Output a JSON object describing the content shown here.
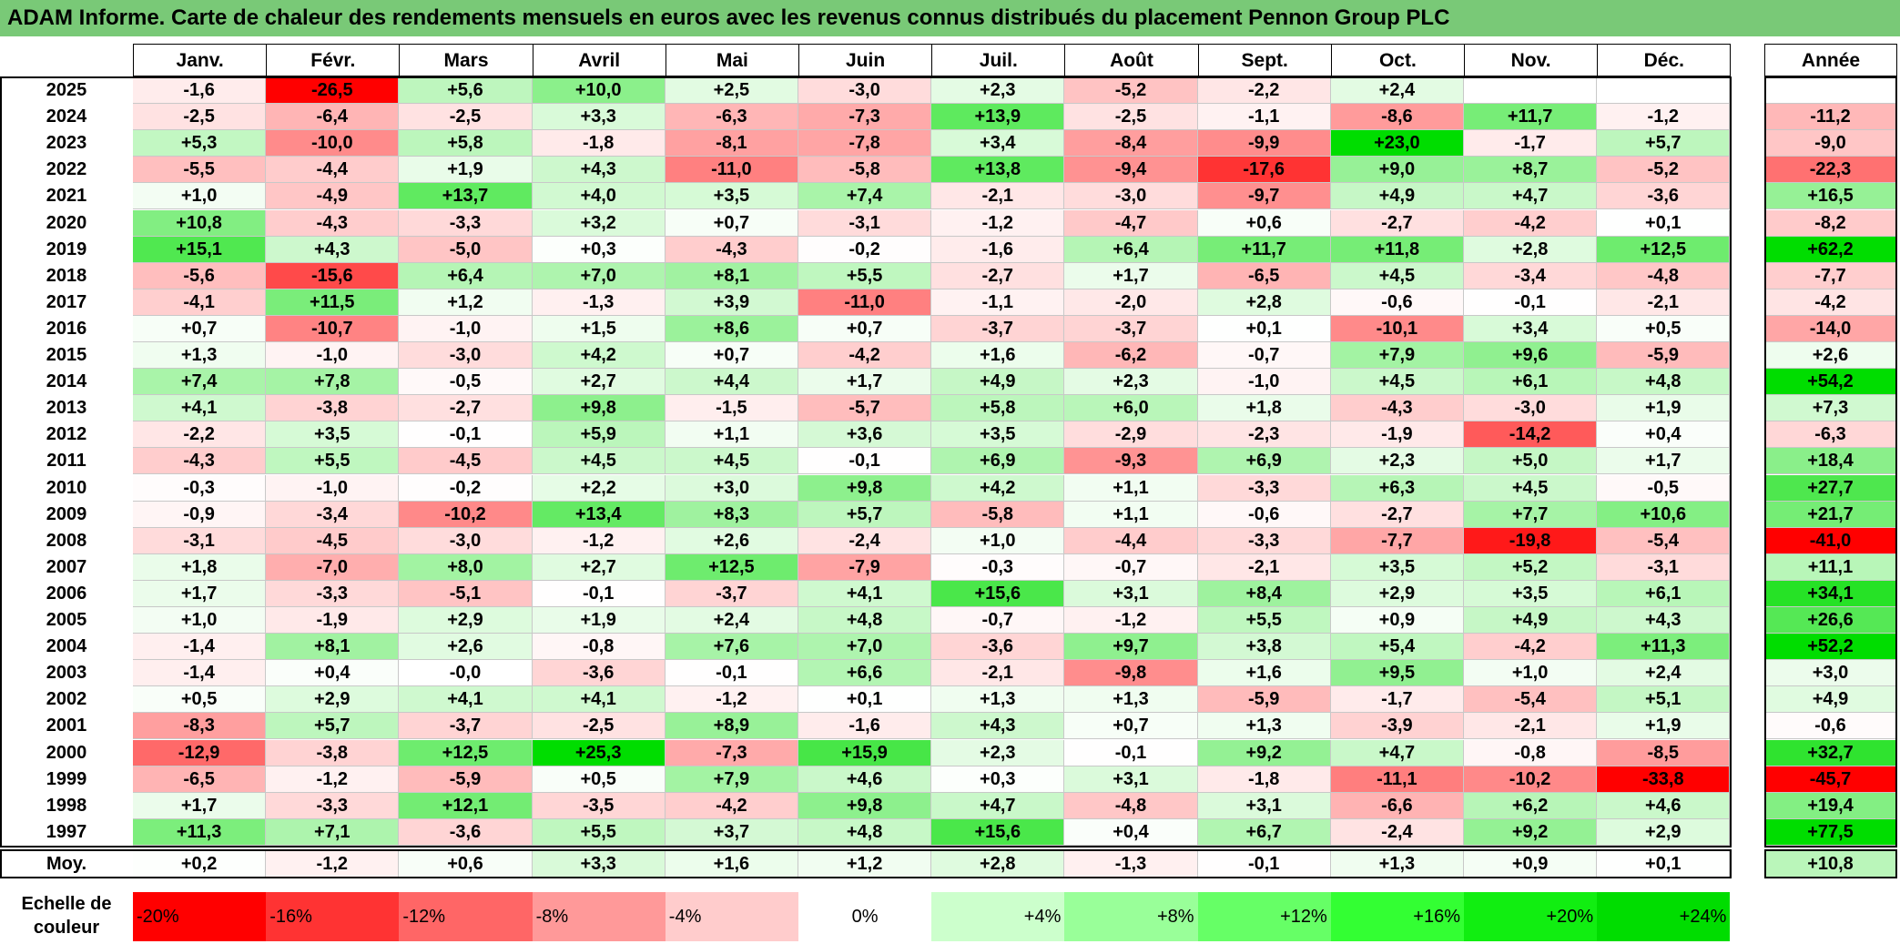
{
  "title": "ADAM Informe. Carte de chaleur des rendements mensuels en euros avec les revenus connus distribués du placement Pennon Group PLC",
  "chart_data": {
    "type": "heatmap",
    "columns": [
      "Janv.",
      "Févr.",
      "Mars",
      "Avril",
      "Mai",
      "Juin",
      "Juil.",
      "Août",
      "Sept.",
      "Oct.",
      "Nov.",
      "Déc."
    ],
    "year_column_label": "Année",
    "rows": [
      {
        "label": "2025",
        "values": [
          "-1,6",
          "-26,5",
          "+5,6",
          "+10,0",
          "+2,5",
          "-3,0",
          "+2,3",
          "-5,2",
          "-2,2",
          "+2,4",
          "",
          ""
        ],
        "annual": ""
      },
      {
        "label": "2024",
        "values": [
          "-2,5",
          "-6,4",
          "-2,5",
          "+3,3",
          "-6,3",
          "-7,3",
          "+13,9",
          "-2,5",
          "-1,1",
          "-8,6",
          "+11,7",
          "-1,2"
        ],
        "annual": "-11,2"
      },
      {
        "label": "2023",
        "values": [
          "+5,3",
          "-10,0",
          "+5,8",
          "-1,8",
          "-8,1",
          "-7,8",
          "+3,4",
          "-8,4",
          "-9,9",
          "+23,0",
          "-1,7",
          "+5,7"
        ],
        "annual": "-9,0"
      },
      {
        "label": "2022",
        "values": [
          "-5,5",
          "-4,4",
          "+1,9",
          "+4,3",
          "-11,0",
          "-5,8",
          "+13,8",
          "-9,4",
          "-17,6",
          "+9,0",
          "+8,7",
          "-5,2"
        ],
        "annual": "-22,3"
      },
      {
        "label": "2021",
        "values": [
          "+1,0",
          "-4,9",
          "+13,7",
          "+4,0",
          "+3,5",
          "+7,4",
          "-2,1",
          "-3,0",
          "-9,7",
          "+4,9",
          "+4,7",
          "-3,6"
        ],
        "annual": "+16,5"
      },
      {
        "label": "2020",
        "values": [
          "+10,8",
          "-4,3",
          "-3,3",
          "+3,2",
          "+0,7",
          "-3,1",
          "-1,2",
          "-4,7",
          "+0,6",
          "-2,7",
          "-4,2",
          "+0,1"
        ],
        "annual": "-8,2"
      },
      {
        "label": "2019",
        "values": [
          "+15,1",
          "+4,3",
          "-5,0",
          "+0,3",
          "-4,3",
          "-0,2",
          "-1,6",
          "+6,4",
          "+11,7",
          "+11,8",
          "+2,8",
          "+12,5"
        ],
        "annual": "+62,2"
      },
      {
        "label": "2018",
        "values": [
          "-5,6",
          "-15,6",
          "+6,4",
          "+7,0",
          "+8,1",
          "+5,5",
          "-2,7",
          "+1,7",
          "-6,5",
          "+4,5",
          "-3,4",
          "-4,8"
        ],
        "annual": "-7,7"
      },
      {
        "label": "2017",
        "values": [
          "-4,1",
          "+11,5",
          "+1,2",
          "-1,3",
          "+3,9",
          "-11,0",
          "-1,1",
          "-2,0",
          "+2,8",
          "-0,6",
          "-0,1",
          "-2,1"
        ],
        "annual": "-4,2"
      },
      {
        "label": "2016",
        "values": [
          "+0,7",
          "-10,7",
          "-1,0",
          "+1,5",
          "+8,6",
          "+0,7",
          "-3,7",
          "-3,7",
          "+0,1",
          "-10,1",
          "+3,4",
          "+0,5"
        ],
        "annual": "-14,0"
      },
      {
        "label": "2015",
        "values": [
          "+1,3",
          "-1,0",
          "-3,0",
          "+4,2",
          "+0,7",
          "-4,2",
          "+1,6",
          "-6,2",
          "-0,7",
          "+7,9",
          "+9,6",
          "-5,9"
        ],
        "annual": "+2,6"
      },
      {
        "label": "2014",
        "values": [
          "+7,4",
          "+7,8",
          "-0,5",
          "+2,7",
          "+4,4",
          "+1,7",
          "+4,9",
          "+2,3",
          "-1,0",
          "+4,5",
          "+6,1",
          "+4,8"
        ],
        "annual": "+54,2"
      },
      {
        "label": "2013",
        "values": [
          "+4,1",
          "-3,8",
          "-2,7",
          "+9,8",
          "-1,5",
          "-5,7",
          "+5,8",
          "+6,0",
          "+1,8",
          "-4,3",
          "-3,0",
          "+1,9"
        ],
        "annual": "+7,3"
      },
      {
        "label": "2012",
        "values": [
          "-2,2",
          "+3,5",
          "-0,1",
          "+5,9",
          "+1,1",
          "+3,6",
          "+3,5",
          "-2,9",
          "-2,3",
          "-1,9",
          "-14,2",
          "+0,4"
        ],
        "annual": "-6,3"
      },
      {
        "label": "2011",
        "values": [
          "-4,3",
          "+5,5",
          "-4,5",
          "+4,5",
          "+4,5",
          "-0,1",
          "+6,9",
          "-9,3",
          "+6,9",
          "+2,3",
          "+5,0",
          "+1,7"
        ],
        "annual": "+18,4"
      },
      {
        "label": "2010",
        "values": [
          "-0,3",
          "-1,0",
          "-0,2",
          "+2,2",
          "+3,0",
          "+9,8",
          "+4,2",
          "+1,1",
          "-3,3",
          "+6,3",
          "+4,5",
          "-0,5"
        ],
        "annual": "+27,7"
      },
      {
        "label": "2009",
        "values": [
          "-0,9",
          "-3,4",
          "-10,2",
          "+13,4",
          "+8,3",
          "+5,7",
          "-5,8",
          "+1,1",
          "-0,6",
          "-2,7",
          "+7,7",
          "+10,6"
        ],
        "annual": "+21,7"
      },
      {
        "label": "2008",
        "values": [
          "-3,1",
          "-4,5",
          "-3,0",
          "-1,2",
          "+2,6",
          "-2,4",
          "+1,0",
          "-4,4",
          "-3,3",
          "-7,7",
          "-19,8",
          "-5,4"
        ],
        "annual": "-41,0"
      },
      {
        "label": "2007",
        "values": [
          "+1,8",
          "-7,0",
          "+8,0",
          "+2,7",
          "+12,5",
          "-7,9",
          "-0,3",
          "-0,7",
          "-2,1",
          "+3,5",
          "+5,2",
          "-3,1"
        ],
        "annual": "+11,1"
      },
      {
        "label": "2006",
        "values": [
          "+1,7",
          "-3,3",
          "-5,1",
          "-0,1",
          "-3,7",
          "+4,1",
          "+15,6",
          "+3,1",
          "+8,4",
          "+2,9",
          "+3,5",
          "+6,1"
        ],
        "annual": "+34,1"
      },
      {
        "label": "2005",
        "values": [
          "+1,0",
          "-1,9",
          "+2,9",
          "+1,9",
          "+2,4",
          "+4,8",
          "-0,7",
          "-1,2",
          "+5,5",
          "+0,9",
          "+4,9",
          "+4,3"
        ],
        "annual": "+26,6"
      },
      {
        "label": "2004",
        "values": [
          "-1,4",
          "+8,1",
          "+2,6",
          "-0,8",
          "+7,6",
          "+7,0",
          "-3,6",
          "+9,7",
          "+3,8",
          "+5,4",
          "-4,2",
          "+11,3"
        ],
        "annual": "+52,2"
      },
      {
        "label": "2003",
        "values": [
          "-1,4",
          "+0,4",
          "-0,0",
          "-3,6",
          "-0,1",
          "+6,6",
          "-2,1",
          "-9,8",
          "+1,6",
          "+9,5",
          "+1,0",
          "+2,4"
        ],
        "annual": "+3,0"
      },
      {
        "label": "2002",
        "values": [
          "+0,5",
          "+2,9",
          "+4,1",
          "+4,1",
          "-1,2",
          "+0,1",
          "+1,3",
          "+1,3",
          "-5,9",
          "-1,7",
          "-5,4",
          "+5,1"
        ],
        "annual": "+4,9"
      },
      {
        "label": "2001",
        "values": [
          "-8,3",
          "+5,7",
          "-3,7",
          "-2,5",
          "+8,9",
          "-1,6",
          "+4,3",
          "+0,7",
          "+1,3",
          "-3,9",
          "-2,1",
          "+1,9"
        ],
        "annual": "-0,6"
      },
      {
        "label": "2000",
        "values": [
          "-12,9",
          "-3,8",
          "+12,5",
          "+25,3",
          "-7,3",
          "+15,9",
          "+2,3",
          "-0,1",
          "+9,2",
          "+4,7",
          "-0,8",
          "-8,5"
        ],
        "annual": "+32,7"
      },
      {
        "label": "1999",
        "values": [
          "-6,5",
          "-1,2",
          "-5,9",
          "+0,5",
          "+7,9",
          "+4,6",
          "+0,3",
          "+3,1",
          "-1,8",
          "-11,1",
          "-10,2",
          "-33,8"
        ],
        "annual": "-45,7"
      },
      {
        "label": "1998",
        "values": [
          "+1,7",
          "-3,3",
          "+12,1",
          "-3,5",
          "-4,2",
          "+9,8",
          "+4,7",
          "-4,8",
          "+3,1",
          "-6,6",
          "+6,2",
          "+4,6"
        ],
        "annual": "+19,4"
      },
      {
        "label": "1997",
        "values": [
          "+11,3",
          "+7,1",
          "-3,6",
          "+5,5",
          "+3,7",
          "+4,8",
          "+15,6",
          "+0,4",
          "+6,7",
          "-2,4",
          "+9,2",
          "+2,9"
        ],
        "annual": "+77,5"
      }
    ],
    "average": {
      "label": "Moy.",
      "values": [
        "+0,2",
        "-1,2",
        "+0,6",
        "+3,3",
        "+1,6",
        "+1,2",
        "+2,8",
        "-1,3",
        "-0,1",
        "+1,3",
        "+0,9",
        "+0,1"
      ],
      "annual": "+10,8"
    },
    "color_scale": {
      "label_line1": "Echelle de",
      "label_line2": "couleur",
      "stops": [
        {
          "label": "-20%",
          "value": -20,
          "color": "#ff0000"
        },
        {
          "label": "-16%",
          "value": -16,
          "color": "#ff3333"
        },
        {
          "label": "-12%",
          "value": -12,
          "color": "#ff6666"
        },
        {
          "label": "-8%",
          "value": -8,
          "color": "#ff9999"
        },
        {
          "label": "-4%",
          "value": -4,
          "color": "#ffcccc"
        },
        {
          "label": "0%",
          "value": 0,
          "color": "#ffffff"
        },
        {
          "label": "+4%",
          "value": 4,
          "color": "#ccffcc"
        },
        {
          "label": "+8%",
          "value": 8,
          "color": "#99ff99"
        },
        {
          "label": "+12%",
          "value": 12,
          "color": "#66ff66"
        },
        {
          "label": "+16%",
          "value": 16,
          "color": "#33ff33"
        },
        {
          "label": "+20%",
          "value": 20,
          "color": "#11ee11"
        },
        {
          "label": "+24%",
          "value": 24,
          "color": "#00dd00"
        }
      ]
    }
  }
}
